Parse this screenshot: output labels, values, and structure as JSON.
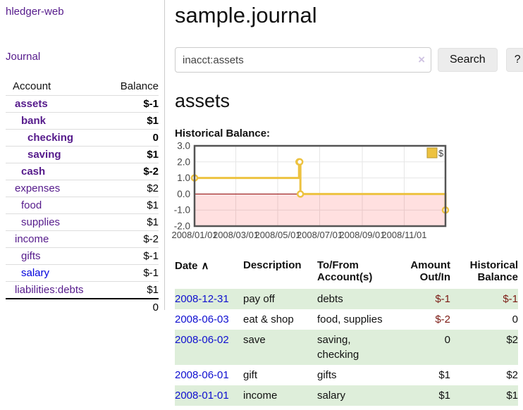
{
  "colors": {
    "visited_link_purple": "#551a8b",
    "unvisited_link_blue": "#0000dd",
    "date_link_blue": "#0f0fd0",
    "negative_strong": "#7b1a13",
    "negative_light": "#b87a74",
    "row_green": "#deeeda",
    "series_gold": "#edc240",
    "chart_border": "#545454",
    "zero_line": "#8b0000"
  },
  "sidebar": {
    "brand": "hledger-web",
    "journal_label": "Journal",
    "accounts_table": {
      "account_header": "Account",
      "balance_header": "Balance",
      "rows": [
        {
          "name": "assets",
          "depth": 0,
          "balance": "$-1",
          "bold": true,
          "neg": "strong",
          "variant": "visited"
        },
        {
          "name": "bank",
          "depth": 1,
          "balance": "$1",
          "bold": true,
          "neg": "none",
          "variant": "visited"
        },
        {
          "name": "checking",
          "depth": 2,
          "balance": "0",
          "bold": true,
          "neg": "none",
          "variant": "visited"
        },
        {
          "name": "saving",
          "depth": 2,
          "balance": "$1",
          "bold": true,
          "neg": "none",
          "variant": "visited"
        },
        {
          "name": "cash",
          "depth": 1,
          "balance": "$-2",
          "bold": true,
          "neg": "strong",
          "variant": "visited"
        },
        {
          "name": "expenses",
          "depth": 0,
          "balance": "$2",
          "bold": false,
          "neg": "none",
          "variant": "visited"
        },
        {
          "name": "food",
          "depth": 1,
          "balance": "$1",
          "bold": false,
          "neg": "none",
          "variant": "visited"
        },
        {
          "name": "supplies",
          "depth": 1,
          "balance": "$1",
          "bold": false,
          "neg": "none",
          "variant": "visited"
        },
        {
          "name": "income",
          "depth": 0,
          "balance": "$-2",
          "bold": false,
          "neg": "light",
          "variant": "visited"
        },
        {
          "name": "gifts",
          "depth": 1,
          "balance": "$-1",
          "bold": false,
          "neg": "light",
          "variant": "visited"
        },
        {
          "name": "salary",
          "depth": 1,
          "balance": "$-1",
          "bold": false,
          "neg": "light",
          "variant": "unvisited"
        },
        {
          "name": "liabilities:debts",
          "depth": 0,
          "balance": "$1",
          "bold": false,
          "neg": "none",
          "variant": "visited"
        }
      ],
      "total": "0"
    }
  },
  "header": {
    "title": "sample.journal"
  },
  "search": {
    "value": "inacct:assets",
    "clear_icon": "×",
    "button_label": "Search",
    "help_label": "?"
  },
  "account_page": {
    "heading": "assets",
    "chart_label": "Historical Balance:"
  },
  "chart_data": {
    "type": "line",
    "style": "step",
    "title": "Historical Balance:",
    "legend": [
      {
        "label": "$",
        "color": "#edc240"
      }
    ],
    "legend_position": "top-right",
    "x_range": [
      "2008-01-01",
      "2008-12-31"
    ],
    "y_range": [
      -2,
      3
    ],
    "x_ticks": [
      {
        "label": "2008/01/01",
        "date": "2008-01-01"
      },
      {
        "label": "2008/03/01",
        "date": "2008-03-01"
      },
      {
        "label": "2008/05/01",
        "date": "2008-05-01"
      },
      {
        "label": "2008/07/01",
        "date": "2008-07-01"
      },
      {
        "label": "2008/09/01",
        "date": "2008-09-01"
      },
      {
        "label": "2008/11/01",
        "date": "2008-11-01"
      }
    ],
    "y_ticks": [
      "3.0",
      "2.0",
      "1.0",
      "0.0",
      "-1.0",
      "-2.0"
    ],
    "series": [
      {
        "name": "$",
        "color": "#edc240",
        "marker_fill": "#ffffff",
        "points": [
          [
            "2008-01-01",
            1.0
          ],
          [
            "2008-06-01",
            2.0
          ],
          [
            "2008-06-02",
            2.0
          ],
          [
            "2008-06-03",
            0.0
          ],
          [
            "2008-12-31",
            -1.0
          ]
        ]
      }
    ],
    "negative_region_fill": "rgba(255,0,0,0.12)",
    "zero_line_color": "#8b0000",
    "grid_color": "#e6e6e6",
    "border_color": "#545454",
    "grid": true
  },
  "register_table": {
    "headers": {
      "date": "Date",
      "sort_icon": "∧",
      "description": "Description",
      "tofrom": "To/From\nAccount(s)",
      "amount": "Amount\nOut/In",
      "balance": "Historical\nBalance"
    },
    "rows": [
      {
        "date": "2008-12-31",
        "description": "pay off",
        "accounts": "debts",
        "amount": "$-1",
        "balance": "$-1"
      },
      {
        "date": "2008-06-03",
        "description": "eat & shop",
        "accounts": "food, supplies",
        "amount": "$-2",
        "balance": "0"
      },
      {
        "date": "2008-06-02",
        "description": "save",
        "accounts": "saving,\nchecking",
        "amount": "0",
        "balance": "$2"
      },
      {
        "date": "2008-06-01",
        "description": "gift",
        "accounts": "gifts",
        "amount": "$1",
        "balance": "$2"
      },
      {
        "date": "2008-01-01",
        "description": "income",
        "accounts": "salary",
        "amount": "$1",
        "balance": "$1"
      }
    ]
  }
}
